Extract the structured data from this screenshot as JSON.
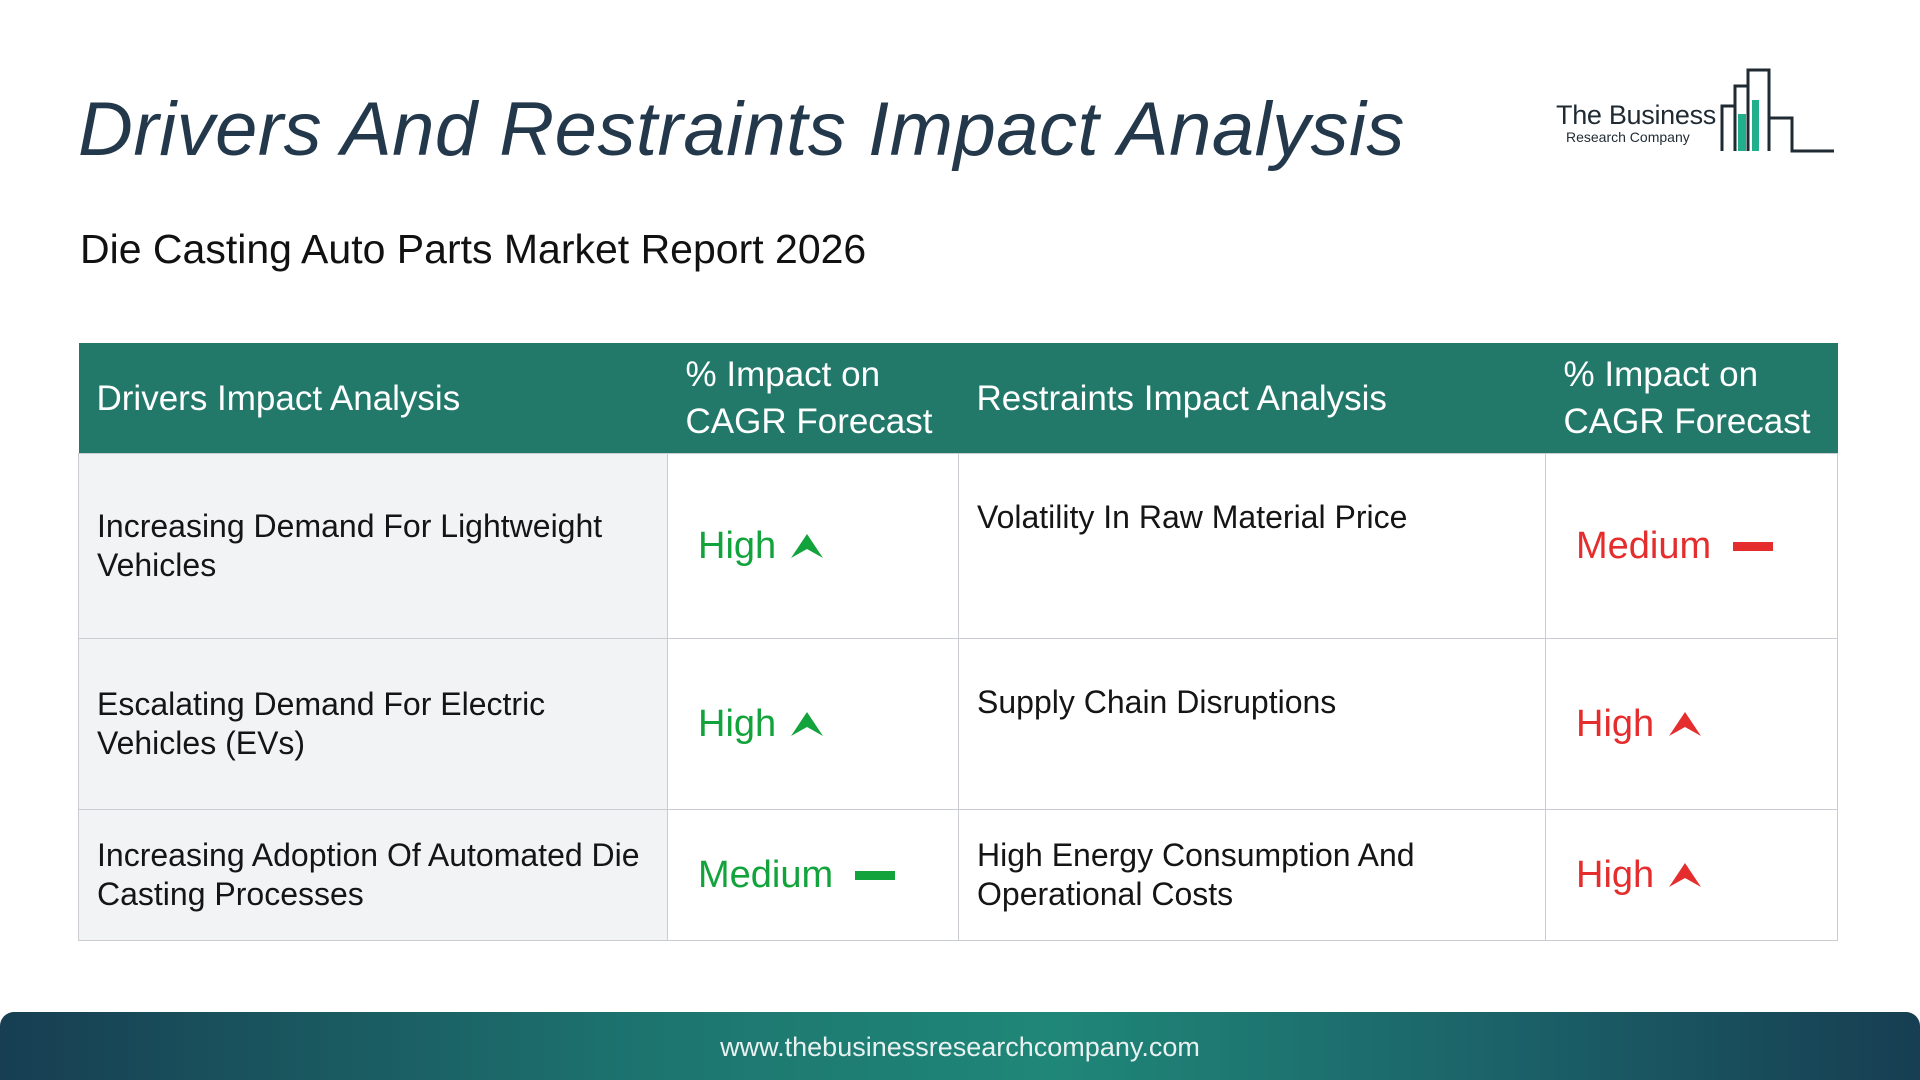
{
  "page": {
    "title": "Drivers And Restraints Impact Analysis",
    "subtitle": "Die Casting Auto Parts Market Report 2026"
  },
  "logo": {
    "line1": "The Business",
    "line2": "Research Company"
  },
  "table": {
    "headers": [
      "Drivers Impact Analysis",
      "% Impact on CAGR Forecast",
      "Restraints Impact Analysis",
      "% Impact on CAGR Forecast"
    ],
    "rows": [
      {
        "driver": "Increasing Demand For Lightweight Vehicles",
        "driver_impact": "High",
        "driver_trend": "up-arrow-icon",
        "restraint": "Volatility In Raw Material Price",
        "restraint_impact": "Medium",
        "restraint_trend": "dash-icon"
      },
      {
        "driver": "Escalating Demand For Electric Vehicles (EVs)",
        "driver_impact": "High",
        "driver_trend": "up-arrow-icon",
        "restraint": "Supply Chain Disruptions",
        "restraint_impact": "High",
        "restraint_trend": "up-arrow-icon"
      },
      {
        "driver": "Increasing Adoption Of Automated Die Casting Processes",
        "driver_impact": "Medium",
        "driver_trend": "dash-icon",
        "restraint": "High Energy Consumption And Operational Costs",
        "restraint_impact": "High",
        "restraint_trend": "up-arrow-icon"
      }
    ]
  },
  "footer": {
    "url": "www.thebusinessresearchcompany.com"
  },
  "colors": {
    "header_bg": "#22796a",
    "title": "#23384b",
    "driver_impact": "#13a33c",
    "restraint_impact": "#e52d2d"
  }
}
